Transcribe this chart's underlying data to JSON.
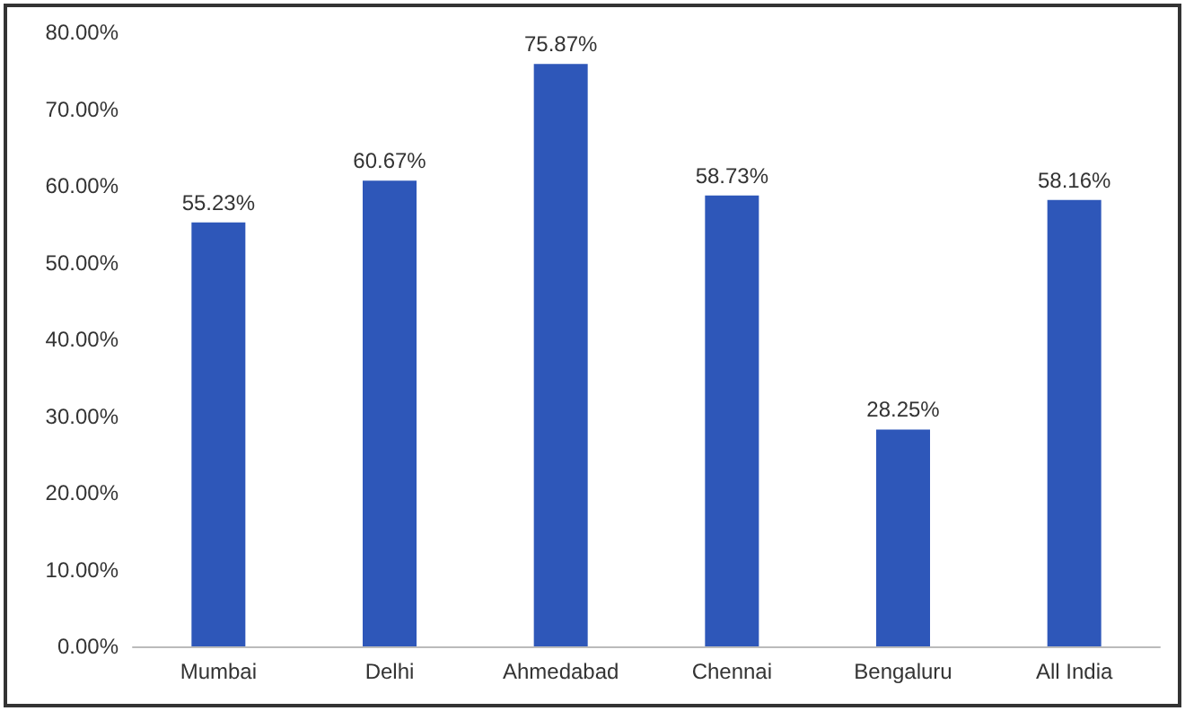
{
  "chart_data": {
    "type": "bar",
    "categories": [
      "Mumbai",
      "Delhi",
      "Ahmedabad",
      "Chennai",
      "Bengaluru",
      "All India"
    ],
    "values": [
      55.23,
      60.67,
      75.87,
      58.73,
      28.25,
      58.16
    ],
    "value_labels": [
      "55.23%",
      "60.67%",
      "75.87%",
      "58.73%",
      "28.25%",
      "58.16%"
    ],
    "color": "#2e57b9",
    "ylim": [
      0,
      80
    ],
    "yticks": [
      {
        "value": 0,
        "label": "0.00%"
      },
      {
        "value": 10,
        "label": "10.00%"
      },
      {
        "value": 20,
        "label": "20.00%"
      },
      {
        "value": 30,
        "label": "30.00%"
      },
      {
        "value": 40,
        "label": "40.00%"
      },
      {
        "value": 50,
        "label": "50.00%"
      },
      {
        "value": 60,
        "label": "60.00%"
      },
      {
        "value": 70,
        "label": "70.00%"
      },
      {
        "value": 80,
        "label": "80.00%"
      }
    ],
    "grid": false
  }
}
